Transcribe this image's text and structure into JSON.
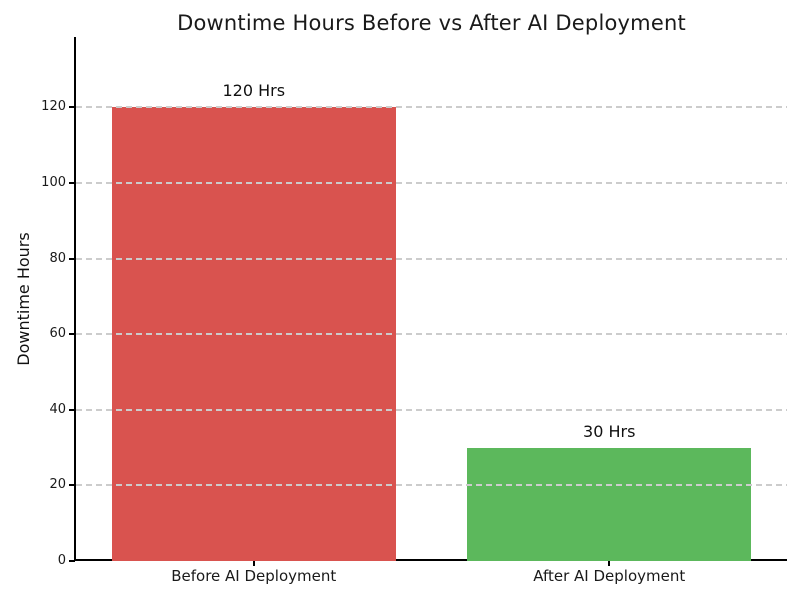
{
  "chart_data": {
    "type": "bar",
    "title": "Downtime Hours Before vs After AI Deployment",
    "xlabel": "",
    "ylabel": "Downtime Hours",
    "categories": [
      "Before AI Deployment",
      "After AI Deployment"
    ],
    "values": [
      120,
      30
    ],
    "bar_labels": [
      "120 Hrs",
      "30 Hrs"
    ],
    "bar_colors": [
      "#d9534f",
      "#5cb85c"
    ],
    "yticks": [
      0,
      20,
      40,
      60,
      80,
      100,
      120
    ],
    "ylim": [
      0,
      138.6
    ],
    "grid": "horizontal-dashed",
    "grid_color": "#cccccc",
    "axis_color": "#000000",
    "title_color": "#1a1a1a",
    "legend": "none"
  }
}
